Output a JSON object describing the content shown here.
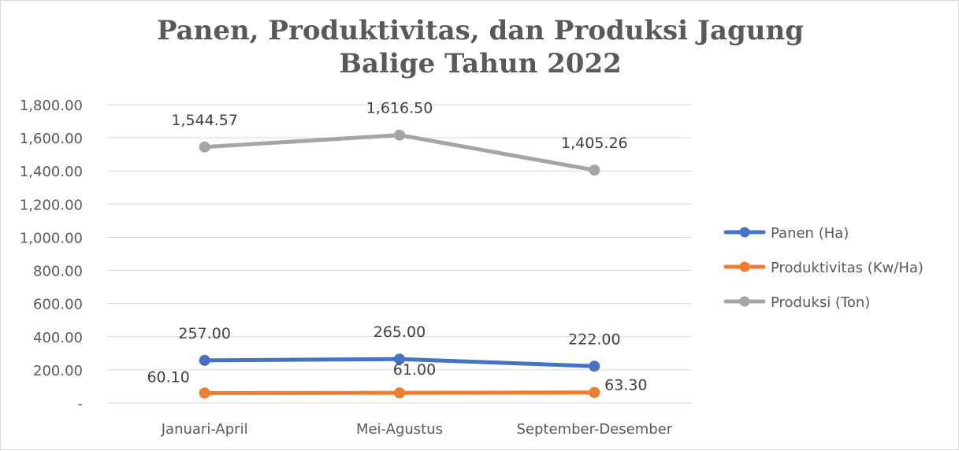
{
  "chart_data": {
    "type": "line",
    "title_lines": [
      "Panen, Produktivitas, dan Produksi Jagung",
      "Balige Tahun 2022"
    ],
    "categories": [
      "Januari-April",
      "Mei-Agustus",
      "September-Desember"
    ],
    "series": [
      {
        "name": "Panen (Ha)",
        "color": "#4472c4",
        "values": [
          257.0,
          265.0,
          222.0
        ],
        "labels": [
          "257.00",
          "265.00",
          "222.00"
        ]
      },
      {
        "name": "Produktivitas (Kw/Ha)",
        "color": "#ed7d31",
        "values": [
          60.1,
          61.0,
          63.3
        ],
        "labels": [
          "60.10",
          "61.00",
          "63.30"
        ]
      },
      {
        "name": "Produksi (Ton)",
        "color": "#a5a5a5",
        "values": [
          1544.57,
          1616.5,
          1405.26
        ],
        "labels": [
          "1,544.57",
          "1,616.50",
          "1,405.26"
        ]
      }
    ],
    "y_ticks": [
      {
        "value": 0,
        "label": "-"
      },
      {
        "value": 200,
        "label": "200.00"
      },
      {
        "value": 400,
        "label": "400.00"
      },
      {
        "value": 600,
        "label": "600.00"
      },
      {
        "value": 800,
        "label": "800.00"
      },
      {
        "value": 1000,
        "label": "1,000.00"
      },
      {
        "value": 1200,
        "label": "1,200.00"
      },
      {
        "value": 1400,
        "label": "1,400.00"
      },
      {
        "value": 1600,
        "label": "1,600.00"
      },
      {
        "value": 1800,
        "label": "1,800.00"
      }
    ],
    "ylim": [
      0,
      1800
    ],
    "grid": true,
    "legend_position": "right",
    "xlabel": "",
    "ylabel": ""
  }
}
